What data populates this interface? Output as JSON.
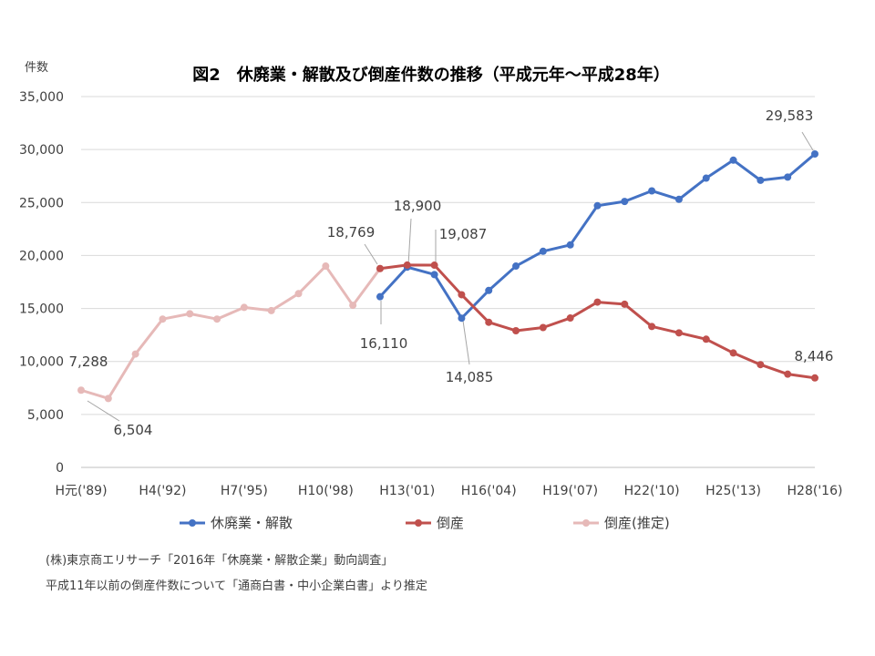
{
  "chart_data": {
    "type": "line",
    "title": "図2　休廃業・解散及び倒産件数の推移（平成元年～平成28年）",
    "ylabel": "件数",
    "ylim": [
      0,
      35000
    ],
    "yticks": [
      0,
      5000,
      10000,
      15000,
      20000,
      25000,
      30000,
      35000
    ],
    "ytick_labels": [
      "0",
      "5,000",
      "10,000",
      "15,000",
      "20,000",
      "25,000",
      "30,000",
      "35,000"
    ],
    "x": [
      "H元('89)",
      "H2",
      "H3",
      "H4('92)",
      "H5",
      "H6",
      "H7('95)",
      "H8",
      "H9",
      "H10('98)",
      "H11",
      "H12",
      "H13('01)",
      "H14",
      "H15",
      "H16('04)",
      "H17",
      "H18",
      "H19('07)",
      "H20",
      "H21",
      "H22('10)",
      "H23",
      "H24",
      "H25('13)",
      "H26",
      "H27",
      "H28('16)"
    ],
    "xtick_labels": [
      "H元('89)",
      "H4('92)",
      "H7('95)",
      "H10('98)",
      "H13('01)",
      "H16('04)",
      "H19('07)",
      "H22('10)",
      "H25('13)",
      "H28('16)"
    ],
    "grid": true,
    "legend_position": "bottom",
    "series": [
      {
        "name": "休廃業・解散",
        "color": "#4472C4",
        "values": [
          null,
          null,
          null,
          null,
          null,
          null,
          null,
          null,
          null,
          null,
          null,
          16110,
          18900,
          18200,
          14085,
          16700,
          19000,
          20400,
          21000,
          24700,
          25100,
          26100,
          25300,
          27300,
          29000,
          27100,
          27400,
          29583
        ]
      },
      {
        "name": "倒産",
        "color": "#C0504D",
        "values": [
          null,
          null,
          null,
          null,
          null,
          null,
          null,
          null,
          null,
          null,
          null,
          18769,
          19100,
          19087,
          16300,
          13700,
          12900,
          13200,
          14100,
          15600,
          15400,
          13300,
          12700,
          12100,
          10800,
          9700,
          8800,
          8446
        ]
      },
      {
        "name": "倒産(推定)",
        "color": "#E6B9B8",
        "values": [
          7288,
          6504,
          10700,
          14000,
          14500,
          14000,
          15100,
          14800,
          16400,
          19000,
          15300,
          18769,
          null,
          null,
          null,
          null,
          null,
          null,
          null,
          null,
          null,
          null,
          null,
          null,
          null,
          null,
          null,
          null
        ]
      }
    ],
    "annotations": [
      "7,288",
      "6,504",
      "18,769",
      "18,900",
      "19,087",
      "16,110",
      "14,085",
      "29,583",
      "8,446"
    ]
  },
  "notes": [
    "(株)東京商エリサーチ「2016年「休廃業・解散企業」動向調査」",
    "平成11年以前の倒産件数について「通商白書・中小企業白書」より推定"
  ]
}
